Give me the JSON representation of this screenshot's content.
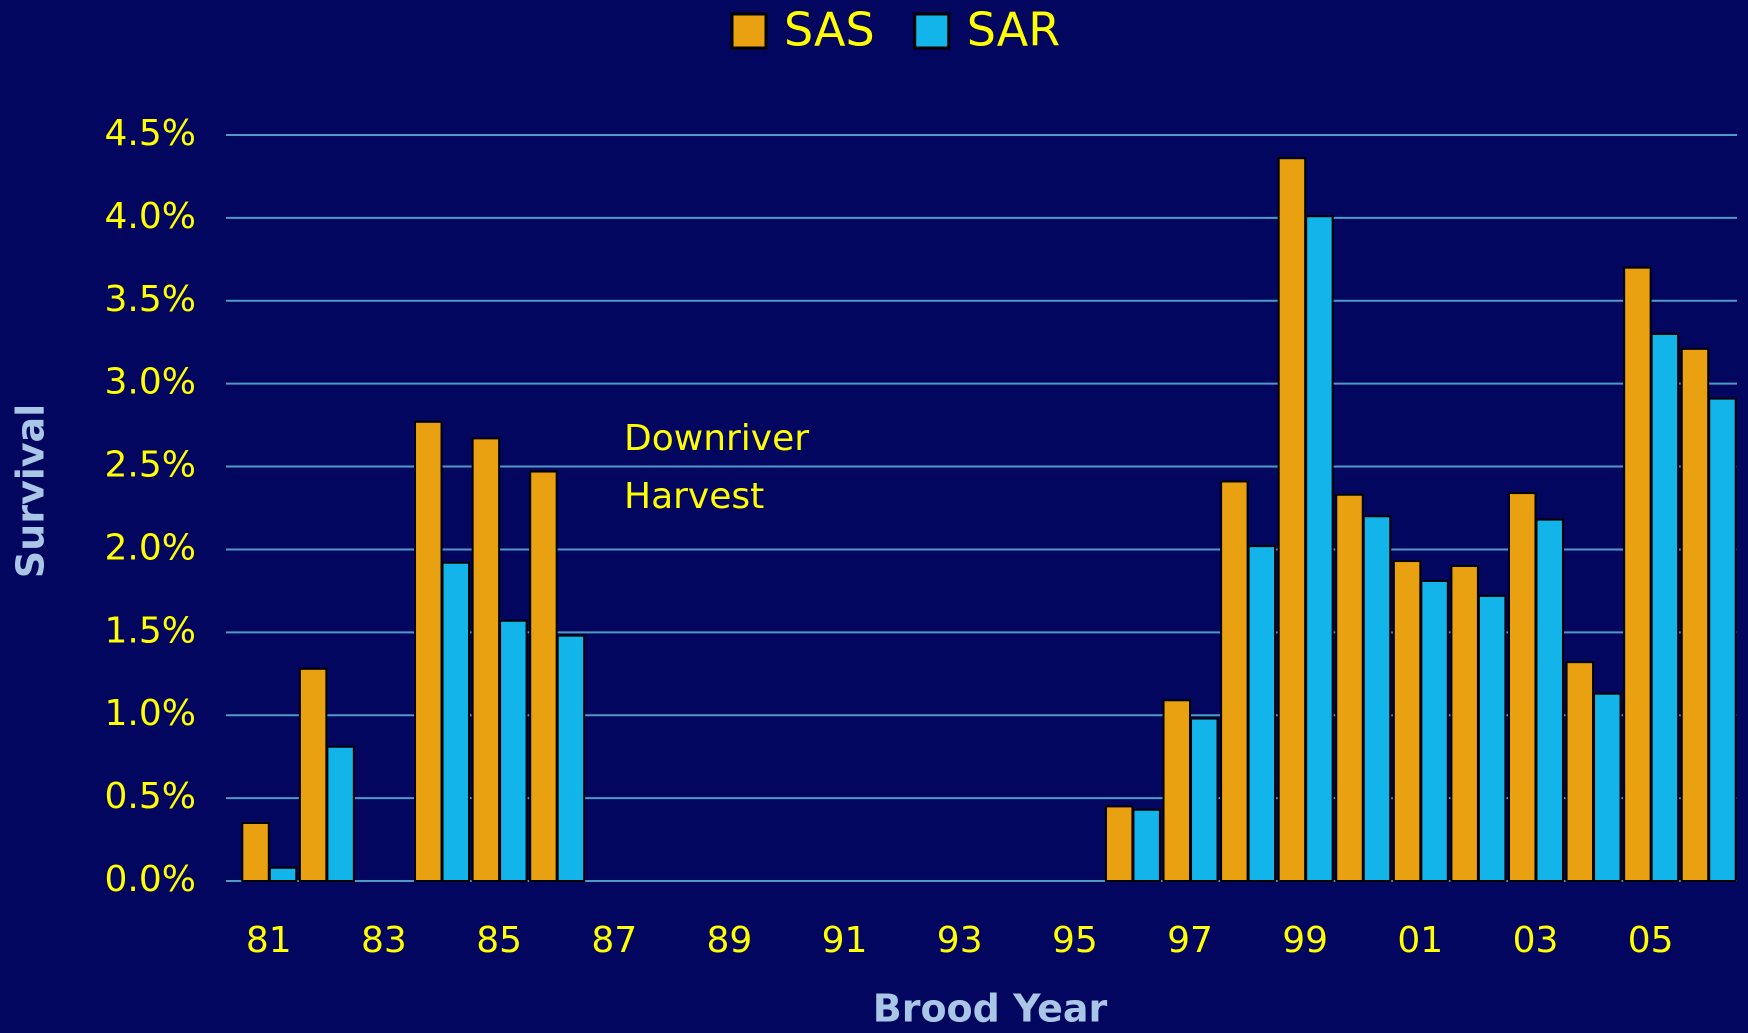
{
  "chart_data": {
    "type": "bar",
    "categories": [
      "81",
      null,
      "83",
      null,
      "85",
      null,
      "87",
      null,
      "89",
      null,
      "91",
      null,
      "93",
      null,
      "95",
      null,
      "97",
      null,
      "99",
      null,
      "01",
      null,
      "03",
      null,
      "05",
      null
    ],
    "series": [
      {
        "name": "SAS",
        "color": "#e9a112",
        "values": [
          0.35,
          1.28,
          null,
          2.77,
          2.67,
          2.47,
          null,
          null,
          null,
          null,
          null,
          null,
          null,
          null,
          null,
          0.45,
          1.09,
          2.41,
          4.36,
          2.33,
          1.93,
          1.9,
          2.34,
          1.32,
          3.7,
          3.21
        ]
      },
      {
        "name": "SAR",
        "color": "#12b4ea",
        "values": [
          0.08,
          0.81,
          null,
          1.92,
          1.57,
          1.48,
          null,
          null,
          null,
          null,
          null,
          null,
          null,
          null,
          null,
          0.43,
          0.98,
          2.02,
          4.01,
          2.2,
          1.81,
          1.72,
          2.18,
          1.13,
          3.3,
          2.91
        ]
      }
    ],
    "ylim": [
      0,
      4.5
    ],
    "yticks": [
      {
        "value": 0,
        "label": "0.0%"
      },
      {
        "value": 0.5,
        "label": "0.5%"
      },
      {
        "value": 1,
        "label": "1.0%"
      },
      {
        "value": 1.5,
        "label": "1.5%"
      },
      {
        "value": 2,
        "label": "2.0%"
      },
      {
        "value": 2.5,
        "label": "2.5%"
      },
      {
        "value": 3,
        "label": "3.0%"
      },
      {
        "value": 3.5,
        "label": "3.5%"
      },
      {
        "value": 4,
        "label": "4.0%"
      },
      {
        "value": 4.5,
        "label": "4.5%"
      }
    ],
    "grid": true,
    "xlabel": "Brood Year",
    "ylabel": "Survival",
    "annotation": [
      "Downriver",
      "Harvest"
    ],
    "legend": "top"
  }
}
